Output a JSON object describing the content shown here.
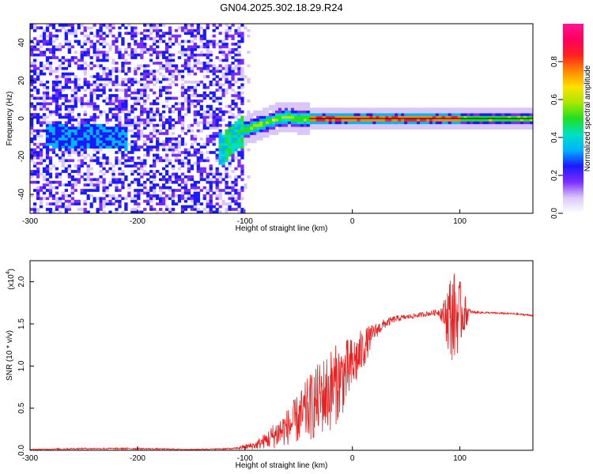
{
  "title": "GN04.2025.302.18.29.R24",
  "chart_data": [
    {
      "type": "heatmap",
      "xlabel": "Height of straight line (km)",
      "ylabel": "Frequency (Hz)",
      "xlim": [
        -300,
        168
      ],
      "ylim": [
        -50,
        50
      ],
      "xticks": [
        -300,
        -200,
        -100,
        0,
        100
      ],
      "yticks": [
        -40,
        -20,
        0,
        20,
        40
      ],
      "noise_region_x": [
        -300,
        -100
      ],
      "ridge": {
        "x": [
          -280,
          -260,
          -240,
          -220,
          -120,
          -110,
          -100,
          -90,
          -80,
          -70,
          -60,
          -50,
          -40,
          -30,
          -20,
          -10,
          0,
          20,
          50,
          100,
          150,
          168
        ],
        "y": [
          -9,
          -10,
          -9,
          -10,
          -16,
          -10,
          -6,
          -4,
          -2,
          0,
          1,
          0,
          0,
          0,
          0,
          0,
          0,
          0,
          0,
          0,
          0,
          0
        ]
      },
      "colorbar": {
        "label": "Normalized spectral amplitude",
        "range": [
          0,
          1
        ],
        "ticks": [
          "0.0",
          "0.2",
          "0.4",
          "0.6",
          "0.8"
        ],
        "tick_values": [
          0,
          0.2,
          0.4,
          0.6,
          0.8
        ],
        "colors": [
          "#ffffff",
          "#d9c8f7",
          "#7a2bff",
          "#1a1aff",
          "#00b4ff",
          "#00e0c0",
          "#20e020",
          "#a8e800",
          "#ffe000",
          "#ff8800",
          "#ff2020",
          "#ff0060",
          "#ff1493"
        ]
      }
    },
    {
      "type": "line",
      "xlabel": "Height of straight line (km)",
      "ylabel": "SNR (10 * v/v)",
      "y_multiplier_base": "x10",
      "y_multiplier_exp": "4",
      "xlim": [
        -300,
        168
      ],
      "ylim": [
        0,
        2.25
      ],
      "xticks": [
        -300,
        -200,
        -100,
        0,
        100
      ],
      "yticks": [
        "0.0",
        "0.5",
        "1.0",
        "1.5",
        "2.0"
      ],
      "ytick_values": [
        0,
        0.5,
        1.0,
        1.5,
        2.0
      ],
      "series": [
        {
          "color": "#e82020",
          "x": [
            -300,
            -250,
            -200,
            -150,
            -110,
            -100,
            -90,
            -80,
            -70,
            -60,
            -50,
            -40,
            -30,
            -20,
            -10,
            0,
            10,
            20,
            30,
            40,
            50,
            60,
            70,
            80,
            85,
            90,
            95,
            100,
            110,
            130,
            150,
            168
          ],
          "y": [
            0.01,
            0.02,
            0.02,
            0.01,
            0.02,
            0.04,
            0.06,
            0.12,
            0.2,
            0.28,
            0.38,
            0.5,
            0.62,
            0.72,
            0.85,
            1.0,
            1.2,
            1.4,
            1.5,
            1.56,
            1.58,
            1.6,
            1.62,
            1.64,
            1.62,
            1.6,
            1.58,
            1.62,
            1.64,
            1.63,
            1.62,
            1.6
          ],
          "noise_amplitude": [
            0.005,
            0.01,
            0.01,
            0.005,
            0.01,
            0.03,
            0.05,
            0.1,
            0.18,
            0.22,
            0.3,
            0.4,
            0.45,
            0.5,
            0.45,
            0.35,
            0.25,
            0.1,
            0.06,
            0.04,
            0.03,
            0.03,
            0.03,
            0.04,
            0.15,
            0.5,
            0.55,
            0.4,
            0.02,
            0.01,
            0.01,
            0.01
          ]
        }
      ]
    }
  ]
}
